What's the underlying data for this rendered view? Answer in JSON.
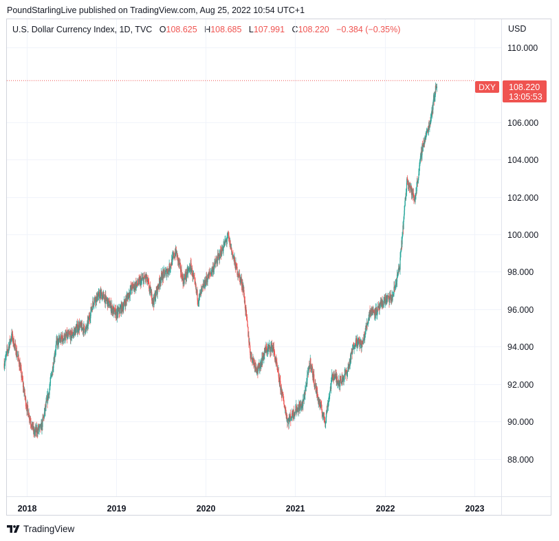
{
  "header": {
    "published": "PoundStarlingLive published on TradingView.com, Aug 25, 2022 10:54 UTC+1"
  },
  "legend": {
    "symbol_info": "U.S. Dollar Currency Index, 1D, TVC",
    "open_label": "O",
    "open": "108.625",
    "high_label": "H",
    "high": "108.685",
    "low_label": "L",
    "low": "107.991",
    "close_label": "C",
    "close": "108.220",
    "change": "−0.384 (−0.35%)"
  },
  "price_axis": {
    "currency": "USD"
  },
  "last_price": {
    "symbol_tag": "DXY",
    "price": "108.220",
    "countdown": "13:05:53"
  },
  "footer": {
    "brand": "TradingView"
  },
  "colors": {
    "up": "#26a69a",
    "down": "#ef5350",
    "grid": "#f0f3fa",
    "text": "#131722"
  },
  "chart_data": {
    "type": "line",
    "style": "candlestick",
    "series": [
      {
        "name": "",
        "x": [
          "2017-10",
          "2017-11",
          "2017-12",
          "2018-01",
          "2018-02",
          "2018-03",
          "2018-04",
          "2018-05",
          "2018-06",
          "2018-07",
          "2018-08",
          "2018-09",
          "2018-10",
          "2018-11",
          "2018-12",
          "2019-01",
          "2019-02",
          "2019-03",
          "2019-04",
          "2019-05",
          "2019-06",
          "2019-07",
          "2019-08",
          "2019-09",
          "2019-10",
          "2019-11",
          "2019-12",
          "2020-01",
          "2020-02",
          "2020-03",
          "2020-04",
          "2020-05",
          "2020-06",
          "2020-07",
          "2020-08",
          "2020-09",
          "2020-10",
          "2020-11",
          "2020-12",
          "2021-01",
          "2021-02",
          "2021-03",
          "2021-04",
          "2021-05",
          "2021-06",
          "2021-07",
          "2021-08",
          "2021-09",
          "2021-10",
          "2021-11",
          "2021-12",
          "2022-01",
          "2022-02",
          "2022-03",
          "2022-04",
          "2022-05",
          "2022-06",
          "2022-07",
          "2022-08"
        ],
        "values": [
          93.1,
          94.6,
          93.2,
          90.8,
          89.4,
          89.7,
          91.6,
          94.2,
          94.5,
          94.6,
          95.1,
          94.9,
          96.5,
          96.8,
          96.3,
          95.7,
          96.2,
          97.1,
          97.4,
          97.7,
          96.4,
          97.7,
          98.1,
          99.1,
          97.5,
          98.3,
          96.5,
          97.5,
          98.2,
          99.0,
          99.9,
          98.3,
          97.2,
          93.6,
          92.7,
          93.8,
          94.0,
          91.9,
          90.0,
          90.6,
          90.9,
          93.2,
          91.3,
          90.0,
          92.5,
          92.1,
          92.7,
          94.3,
          94.1,
          95.9,
          95.9,
          96.5,
          96.6,
          98.3,
          103.0,
          101.8,
          104.6,
          105.9,
          108.2
        ]
      }
    ],
    "x_ticks": [
      "2018",
      "2019",
      "2020",
      "2021",
      "2022",
      "2023"
    ],
    "y_ticks": [
      "88.000",
      "90.000",
      "92.000",
      "94.000",
      "96.000",
      "98.000",
      "100.000",
      "102.000",
      "104.000",
      "106.000",
      "110.000"
    ],
    "ylim": [
      86.0,
      111.5
    ],
    "last_value": 108.22,
    "grid": true,
    "legend": "top-left"
  }
}
